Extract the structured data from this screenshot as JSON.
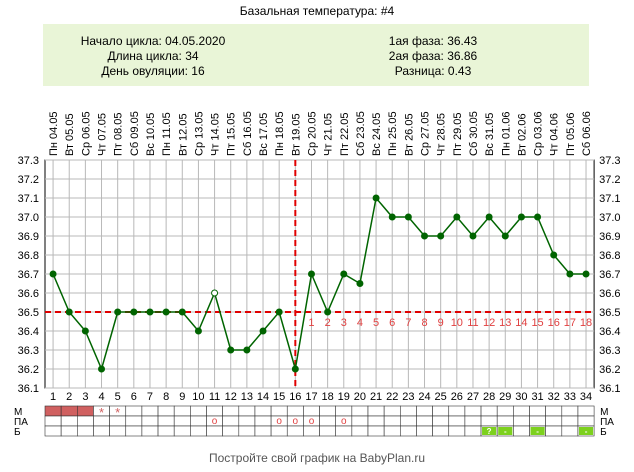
{
  "title": "Базальная температура: #4",
  "info": {
    "cycle_start": "Начало цикла: 04.05.2020",
    "cycle_length": "Длина цикла: 34",
    "ovulation_day": "День овуляции: 16",
    "phase1": "1ая фаза: 36.43",
    "phase2": "2ая фаза: 36.86",
    "difference": "Разница: 0.43"
  },
  "footer": "Постройте свой график на BabyPlan.ru",
  "row_labels": [
    "М",
    "ПА",
    "Б"
  ],
  "chart_data": {
    "type": "line",
    "ylim": [
      36.1,
      37.3
    ],
    "yticks": [
      "36.1",
      "36.2",
      "36.3",
      "36.4",
      "36.5",
      "36.6",
      "36.7",
      "36.8",
      "36.9",
      "37.0",
      "37.1",
      "37.2",
      "37.3"
    ],
    "dates": [
      "Пн 04.05",
      "Вт 05.05",
      "Ср 06.05",
      "Чт 07.05",
      "Пт 08.05",
      "Сб 09.05",
      "Вс 10.05",
      "Пн 11.05",
      "Вт 12.05",
      "Ср 13.05",
      "Чт 14.05",
      "Пт 15.05",
      "Сб 16.05",
      "Вс 17.05",
      "Пн 18.05",
      "Вт 19.05",
      "Ср 20.05",
      "Чт 21.05",
      "Пт 22.05",
      "Сб 23.05",
      "Вс 24.05",
      "Пн 25.05",
      "Вт 26.05",
      "Ср 27.05",
      "Чт 28.05",
      "Пт 29.05",
      "Сб 30.05",
      "Вс 31.05",
      "Пн 01.06",
      "Вт 02.06",
      "Ср 03.06",
      "Чт 04.06",
      "Пт 05.06",
      "Сб 06.06"
    ],
    "days": [
      "1",
      "2",
      "3",
      "4",
      "5",
      "6",
      "7",
      "8",
      "9",
      "10",
      "11",
      "12",
      "13",
      "14",
      "15",
      "16",
      "17",
      "18",
      "19",
      "20",
      "21",
      "22",
      "23",
      "24",
      "25",
      "26",
      "27",
      "28",
      "29",
      "30",
      "31",
      "32",
      "33",
      "34"
    ],
    "temperatures": [
      36.7,
      36.5,
      36.4,
      36.2,
      36.5,
      36.5,
      36.5,
      36.5,
      36.5,
      36.4,
      36.6,
      36.3,
      36.3,
      36.4,
      36.5,
      36.2,
      36.7,
      36.5,
      36.7,
      36.65,
      37.1,
      37.0,
      37.0,
      36.9,
      36.9,
      37.0,
      36.9,
      37.0,
      36.9,
      37.0,
      37.0,
      36.8,
      36.7,
      36.7
    ],
    "open_markers": [
      11
    ],
    "coverline": 36.5,
    "ovulation_day": 16,
    "luteal_labels": [
      "1",
      "2",
      "3",
      "4",
      "5",
      "6",
      "7",
      "8",
      "9",
      "10",
      "11",
      "12",
      "13",
      "14",
      "15",
      "16",
      "17",
      "18"
    ],
    "menstruation": {
      "bleeding_days": [
        1,
        2,
        3
      ],
      "spotting_days": [
        4,
        5
      ],
      "spotting_symbol": "*"
    },
    "intercourse": {
      "days": [
        11,
        15,
        16,
        17,
        19
      ],
      "symbol": "o"
    },
    "tests": {
      "days": [
        28,
        29,
        31,
        34
      ],
      "labels": [
        "?",
        "-",
        "-",
        "-"
      ]
    },
    "colors": {
      "line": "#006400",
      "marker": "#006400",
      "coverline": "#e00000",
      "ovulation": "#e00000",
      "grid": "#b8b8b8",
      "luteal": "#e04040",
      "menstruation": "#d06060",
      "test": "#7dd11e"
    }
  }
}
